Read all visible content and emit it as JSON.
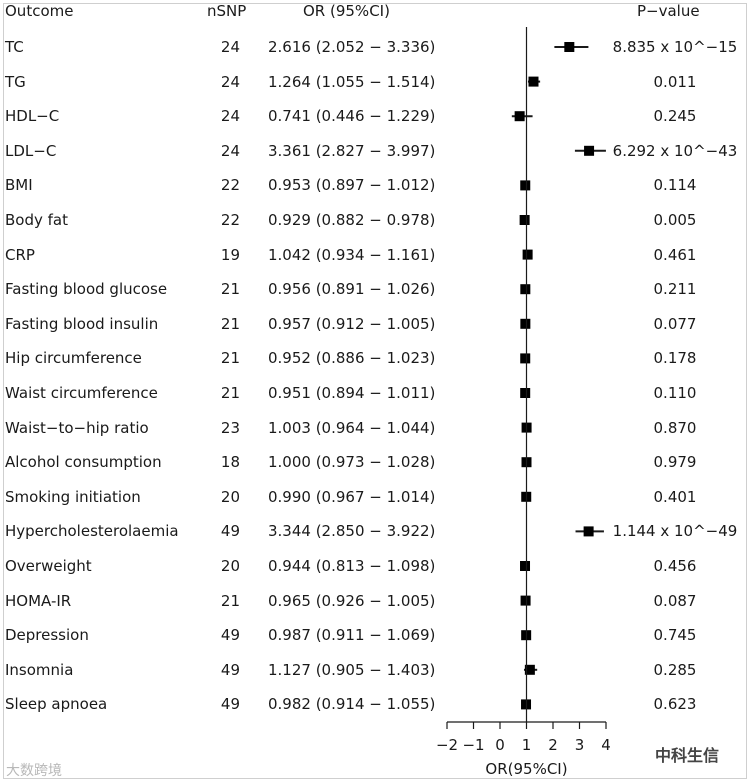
{
  "headers": {
    "outcome": "Outcome",
    "nsnp": "nSNP",
    "or": "OR (95%CI)",
    "p": "P−value"
  },
  "chart_data": {
    "type": "forest",
    "xlabel": "OR(95%CI)",
    "xlim": [
      -2,
      4
    ],
    "xticks": [
      "−2",
      "−1",
      "0",
      "1",
      "2",
      "3",
      "4"
    ],
    "reference_line": 1,
    "rows": [
      {
        "outcome": "TC",
        "nsnp": "24",
        "or_text": "2.616 (2.052 − 3.336)",
        "or": 2.616,
        "lo": 2.052,
        "hi": 3.336,
        "p": "8.835 x 10^−15"
      },
      {
        "outcome": "TG",
        "nsnp": "24",
        "or_text": "1.264 (1.055 − 1.514)",
        "or": 1.264,
        "lo": 1.055,
        "hi": 1.514,
        "p": "0.011"
      },
      {
        "outcome": "HDL−C",
        "nsnp": "24",
        "or_text": "0.741 (0.446 − 1.229)",
        "or": 0.741,
        "lo": 0.446,
        "hi": 1.229,
        "p": "0.245"
      },
      {
        "outcome": "LDL−C",
        "nsnp": "24",
        "or_text": "3.361 (2.827 − 3.997)",
        "or": 3.361,
        "lo": 2.827,
        "hi": 3.997,
        "p": "6.292 x 10^−43"
      },
      {
        "outcome": "BMI",
        "nsnp": "22",
        "or_text": "0.953 (0.897 − 1.012)",
        "or": 0.953,
        "lo": 0.897,
        "hi": 1.012,
        "p": "0.114"
      },
      {
        "outcome": "Body fat",
        "nsnp": "22",
        "or_text": "0.929 (0.882 − 0.978)",
        "or": 0.929,
        "lo": 0.882,
        "hi": 0.978,
        "p": "0.005"
      },
      {
        "outcome": "CRP",
        "nsnp": "19",
        "or_text": "1.042 (0.934 − 1.161)",
        "or": 1.042,
        "lo": 0.934,
        "hi": 1.161,
        "p": "0.461"
      },
      {
        "outcome": "Fasting blood glucose",
        "nsnp": "21",
        "or_text": "0.956 (0.891 − 1.026)",
        "or": 0.956,
        "lo": 0.891,
        "hi": 1.026,
        "p": "0.211"
      },
      {
        "outcome": "Fasting blood insulin",
        "nsnp": "21",
        "or_text": "0.957 (0.912 − 1.005)",
        "or": 0.957,
        "lo": 0.912,
        "hi": 1.005,
        "p": "0.077"
      },
      {
        "outcome": "Hip circumference",
        "nsnp": "21",
        "or_text": "0.952 (0.886 − 1.023)",
        "or": 0.952,
        "lo": 0.886,
        "hi": 1.023,
        "p": "0.178"
      },
      {
        "outcome": "Waist circumference",
        "nsnp": "21",
        "or_text": "0.951 (0.894 − 1.011)",
        "or": 0.951,
        "lo": 0.894,
        "hi": 1.011,
        "p": "0.110"
      },
      {
        "outcome": "Waist−to−hip ratio",
        "nsnp": "23",
        "or_text": "1.003 (0.964 − 1.044)",
        "or": 1.003,
        "lo": 0.964,
        "hi": 1.044,
        "p": "0.870"
      },
      {
        "outcome": "Alcohol consumption",
        "nsnp": "18",
        "or_text": "1.000 (0.973 − 1.028)",
        "or": 1.0,
        "lo": 0.973,
        "hi": 1.028,
        "p": "0.979"
      },
      {
        "outcome": "Smoking initiation",
        "nsnp": "20",
        "or_text": "0.990 (0.967 − 1.014)",
        "or": 0.99,
        "lo": 0.967,
        "hi": 1.014,
        "p": "0.401"
      },
      {
        "outcome": "Hypercholesterolaemia",
        "nsnp": "49",
        "or_text": "3.344 (2.850 − 3.922)",
        "or": 3.344,
        "lo": 2.85,
        "hi": 3.922,
        "p": "1.144 x 10^−49"
      },
      {
        "outcome": "Overweight",
        "nsnp": "20",
        "or_text": "0.944 (0.813 − 1.098)",
        "or": 0.944,
        "lo": 0.813,
        "hi": 1.098,
        "p": "0.456"
      },
      {
        "outcome": "HOMA-IR",
        "nsnp": "21",
        "or_text": "0.965 (0.926 − 1.005)",
        "or": 0.965,
        "lo": 0.926,
        "hi": 1.005,
        "p": "0.087"
      },
      {
        "outcome": "Depression",
        "nsnp": "49",
        "or_text": "0.987 (0.911 − 1.069)",
        "or": 0.987,
        "lo": 0.911,
        "hi": 1.069,
        "p": "0.745"
      },
      {
        "outcome": "Insomnia",
        "nsnp": "49",
        "or_text": "1.127 (0.905 − 1.403)",
        "or": 1.127,
        "lo": 0.905,
        "hi": 1.403,
        "p": "0.285"
      },
      {
        "outcome": "Sleep apnoea",
        "nsnp": "49",
        "or_text": "0.982 (0.914 − 1.055)",
        "or": 0.982,
        "lo": 0.914,
        "hi": 1.055,
        "p": "0.623"
      }
    ]
  },
  "watermarks": {
    "left": "大数跨境",
    "right": "中科生信"
  },
  "colors": {
    "ink": "#1a1a1a",
    "marker": "#000000"
  }
}
